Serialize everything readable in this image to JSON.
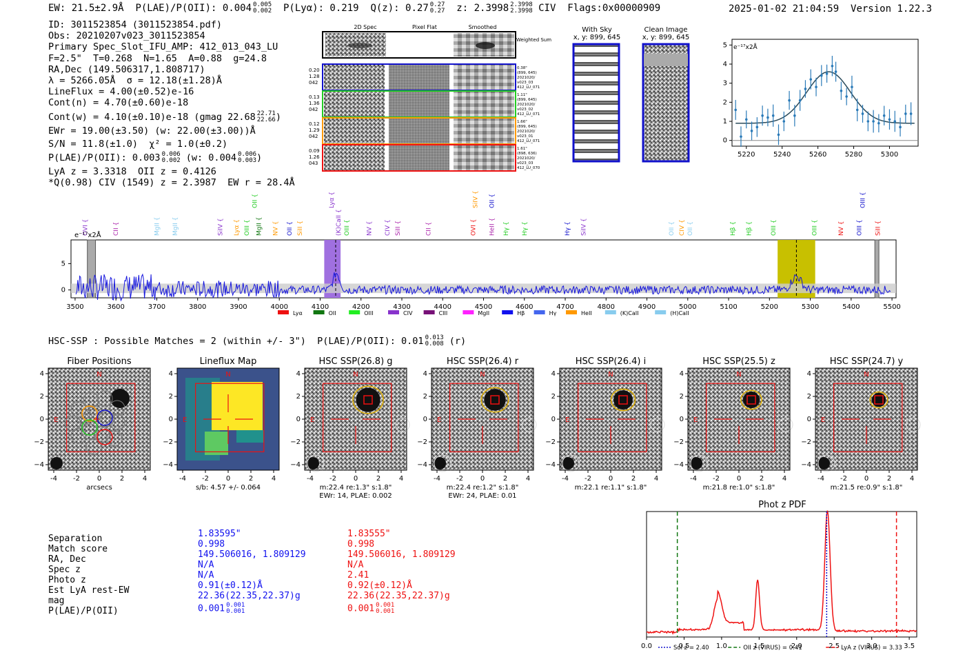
{
  "header": {
    "ew": "EW: 21.5±2.9Å",
    "plae_label": "P(LAE)/P(OII):",
    "plae_val": "0.004",
    "plae_hi": "0.005",
    "plae_lo": "0.002",
    "plya": "P(Lyα): 0.219",
    "qz_label": "Q(z):",
    "qz_val": "0.27",
    "qz_hi": "0.27",
    "qz_lo": "0.27",
    "z_label": "z:",
    "z_val": "2.3998",
    "z_hi": "2.3998",
    "z_lo": "2.3998",
    "z_line": "CIV",
    "flags": "Flags:0x00000909",
    "datetime": "2025-01-02 21:04:59",
    "version": "Version 1.22.3"
  },
  "info": {
    "id": "ID: 3011523854 (3011523854.pdf)",
    "obs": "Obs: 20210207v023_3011523854",
    "primary": "Primary Spec_Slot_IFU_AMP: 412_013_043_LU",
    "params": "F=2.5\"  T=0.268  N=1.65  A=0.88  g=24.8",
    "radec": "RA,Dec (149.506317,1.808717)",
    "lambda": "λ = 5266.05Å  σ = 12.18(±1.28)Å",
    "lineflux": "LineFlux = 4.00(±0.52)e-16",
    "contn": "Cont(n) = 4.70(±0.60)e-18",
    "contw": "Cont(w) = 4.10(±0.10)e-18 (gmag 22.68",
    "contw_hi": "22.71",
    "contw_lo": "22.66",
    "contw_end": ")",
    "ewr": "EWr = 19.00(±3.50) (w: 22.00(±3.00))Å",
    "sn": "S/N = 11.8(±1.0)  χ² = 1.0(±0.2)",
    "plae": "P(LAE)/P(OII): 0.003",
    "plae_hi": "0.006",
    "plae_lo": "0.002",
    "plae_w": "(w: 0.004",
    "plae_w_hi": "0.006",
    "plae_w_lo": "0.003",
    "plae_w_end": ")",
    "lyaz": "LyA z = 3.3318  OII z = 0.4126",
    "qciv": "*Q(0.98) CIV (1549) z = 2.3987  EW r = 28.4Å"
  },
  "cutouts": {
    "col_2d": "2D Spec",
    "col_flat": "Pixel Flat",
    "col_smooth": "Smoothed",
    "weighted": "Weighted Sum",
    "rows": [
      {
        "l1": "0.20",
        "l2": "1.28",
        "l3": "042",
        "r1": "0.38\"",
        "r2": "(899, 645)",
        "r3": "2021020/",
        "r4": "v023_03",
        "r5": "412_LU_071",
        "color": "#1111cc"
      },
      {
        "l1": "0.13",
        "l2": "1.36",
        "l3": "042",
        "r1": "1.11\"",
        "r2": "(899, 645)",
        "r3": "2021020/",
        "r4": "v023_02",
        "r5": "412_LU_071",
        "color": "#22cc22"
      },
      {
        "l1": "0.12",
        "l2": "1.29",
        "l3": "042",
        "r1": "1.66\"",
        "r2": "(899, 645)",
        "r3": "2021020/",
        "r4": "v023_01",
        "r5": "412_LU_071",
        "color": "#ff9900"
      },
      {
        "l1": "0.09",
        "l2": "1.26",
        "l3": "043",
        "r1": "1.61\"",
        "r2": "(898, 636)",
        "r3": "2021020/",
        "r4": "v023_03",
        "r5": "412_LU_070",
        "color": "#ee1111"
      }
    ],
    "withsky_title": "With Sky",
    "withsky_xy": "x, y: 899, 645",
    "clean_title": "Clean Image",
    "clean_xy": "x, y: 899, 645"
  },
  "zoom_plot": {
    "unit_label": "e⁻¹⁷x2Å",
    "xticks": [
      "5220",
      "5240",
      "5260",
      "5280",
      "5300"
    ],
    "yticks": [
      "0",
      "1",
      "2",
      "3",
      "4",
      "5"
    ],
    "xlim": [
      5212,
      5316
    ],
    "ylim": [
      -0.3,
      5.3
    ],
    "gauss": {
      "amp": 2.7,
      "mu": 5266,
      "sigma": 12.2,
      "base": 0.9
    },
    "points": [
      [
        5214,
        1.6
      ],
      [
        5217,
        0.2
      ],
      [
        5220,
        1.1
      ],
      [
        5223,
        0.5
      ],
      [
        5226,
        0.7
      ],
      [
        5229,
        1.3
      ],
      [
        5232,
        1.2
      ],
      [
        5235,
        1.3
      ],
      [
        5238,
        0.3
      ],
      [
        5241,
        1.0
      ],
      [
        5244,
        2.1
      ],
      [
        5247,
        1.3
      ],
      [
        5250,
        2.1
      ],
      [
        5253,
        2.7
      ],
      [
        5256,
        3.2
      ],
      [
        5259,
        2.8
      ],
      [
        5262,
        3.4
      ],
      [
        5265,
        3.5
      ],
      [
        5268,
        3.9
      ],
      [
        5270,
        3.6
      ],
      [
        5273,
        2.6
      ],
      [
        5276,
        2.3
      ],
      [
        5279,
        2.8
      ],
      [
        5282,
        1.6
      ],
      [
        5285,
        1.4
      ],
      [
        5288,
        1.0
      ],
      [
        5291,
        1.0
      ],
      [
        5294,
        0.9
      ],
      [
        5297,
        1.3
      ],
      [
        5300,
        1.1
      ],
      [
        5303,
        1.0
      ],
      [
        5306,
        0.7
      ],
      [
        5309,
        1.4
      ],
      [
        5312,
        1.4
      ]
    ]
  },
  "spectrum": {
    "unit_label": "e⁻¹⁷x2Å",
    "xticks": [
      "3500",
      "3600",
      "3700",
      "3800",
      "3900",
      "4000",
      "4100",
      "4200",
      "4300",
      "4400",
      "4500",
      "4600",
      "4700",
      "4800",
      "4900",
      "5000",
      "5100",
      "5200",
      "5300",
      "5400",
      "5500"
    ],
    "yticks": [
      "0",
      "5"
    ],
    "xlim": [
      3490,
      5510
    ],
    "ylim": [
      -1.5,
      9.5
    ],
    "line_labels": [
      {
        "t": "OVI",
        "w": 3525,
        "c": "#8833cc",
        "lvl": 0
      },
      {
        "t": "CII",
        "w": 3600,
        "c": "#aa22aa",
        "lvl": 0
      },
      {
        "t": "MgII",
        "w": 3700,
        "c": "#88ccee",
        "lvl": 0
      },
      {
        "t": "MgII",
        "w": 3745,
        "c": "#88ccee",
        "lvl": 0
      },
      {
        "t": "SiIV",
        "w": 3855,
        "c": "#8833cc",
        "lvl": 0
      },
      {
        "t": "Lyα",
        "w": 3895,
        "c": "#ff9900",
        "lvl": 0
      },
      {
        "t": "OIII",
        "w": 3920,
        "c": "#22cc22",
        "lvl": 0
      },
      {
        "t": "MgII",
        "w": 3950,
        "c": "#117711",
        "lvl": 0
      },
      {
        "t": "OII",
        "w": 3940,
        "c": "#22cc22",
        "lvl": 1
      },
      {
        "t": "NV",
        "w": 3990,
        "c": "#ff9900",
        "lvl": 0
      },
      {
        "t": "OII",
        "w": 4025,
        "c": "#1111cc",
        "lvl": 0
      },
      {
        "t": "SiII",
        "w": 4050,
        "c": "#ff9900",
        "lvl": 0
      },
      {
        "t": "Lyα",
        "w": 4128,
        "c": "#8833cc",
        "lvl": 1
      },
      {
        "t": "(K)CaII",
        "w": 4145,
        "c": "#8833cc",
        "lvl": 0
      },
      {
        "t": "OIII",
        "w": 4165,
        "c": "#22cc22",
        "lvl": 0
      },
      {
        "t": "NV",
        "w": 4220,
        "c": "#8833cc",
        "lvl": 0
      },
      {
        "t": "CIV",
        "w": 4265,
        "c": "#8833cc",
        "lvl": 0
      },
      {
        "t": "SiII",
        "w": 4290,
        "c": "#aa22aa",
        "lvl": 0
      },
      {
        "t": "CII",
        "w": 4365,
        "c": "#aa22aa",
        "lvl": 0
      },
      {
        "t": "SiIV",
        "w": 4480,
        "c": "#ff9900",
        "lvl": 1
      },
      {
        "t": "OVI",
        "w": 4475,
        "c": "#ee1111",
        "lvl": 0
      },
      {
        "t": "OII",
        "w": 4520,
        "c": "#1111cc",
        "lvl": 1
      },
      {
        "t": "HeII",
        "w": 4520,
        "c": "#aa22aa",
        "lvl": 0
      },
      {
        "t": "Hγ",
        "w": 4555,
        "c": "#22cc22",
        "lvl": 0
      },
      {
        "t": "Hγ",
        "w": 4600,
        "c": "#22cc22",
        "lvl": 0
      },
      {
        "t": "Hγ",
        "w": 4705,
        "c": "#1111cc",
        "lvl": 0
      },
      {
        "t": "SiIV",
        "w": 4745,
        "c": "#8833cc",
        "lvl": 0
      },
      {
        "t": "OII",
        "w": 4960,
        "c": "#88ccee",
        "lvl": 0
      },
      {
        "t": "CIV",
        "w": 4985,
        "c": "#ff9900",
        "lvl": 0
      },
      {
        "t": "OII",
        "w": 5005,
        "c": "#88ccee",
        "lvl": 0
      },
      {
        "t": "Hβ",
        "w": 5110,
        "c": "#22cc22",
        "lvl": 0
      },
      {
        "t": "Hβ",
        "w": 5150,
        "c": "#22cc22",
        "lvl": 0
      },
      {
        "t": "OIII",
        "w": 5210,
        "c": "#22cc22",
        "lvl": 0
      },
      {
        "t": "OIII",
        "w": 5310,
        "c": "#22cc22",
        "lvl": 0
      },
      {
        "t": "NV",
        "w": 5375,
        "c": "#ee1111",
        "lvl": 0
      },
      {
        "t": "OIII",
        "w": 5420,
        "c": "#1111cc",
        "lvl": 0
      },
      {
        "t": "OIII",
        "w": 5428,
        "c": "#1111cc",
        "lvl": 1
      },
      {
        "t": "SiII",
        "w": 5465,
        "c": "#ee1111",
        "lvl": 0
      }
    ],
    "bands": [
      {
        "from": 4110,
        "to": 4150,
        "color": "#a070e0"
      },
      {
        "from": 5220,
        "to": 5312,
        "color": "#c8c000"
      }
    ],
    "gray_bands": [
      {
        "from": 3530,
        "to": 3550
      },
      {
        "from": 5458,
        "to": 5468
      }
    ],
    "dashed_lines": [
      4138,
      5266
    ],
    "legend": [
      {
        "t": "Lyα",
        "c": "#ee1111"
      },
      {
        "t": "OII",
        "c": "#117711"
      },
      {
        "t": "OIII",
        "c": "#22ee22"
      },
      {
        "t": "CIV",
        "c": "#8833cc"
      },
      {
        "t": "CIII",
        "c": "#771177"
      },
      {
        "t": "MgII",
        "c": "#ff22ff"
      },
      {
        "t": "Hβ",
        "c": "#1111ee"
      },
      {
        "t": "Hγ",
        "c": "#4466ee"
      },
      {
        "t": "HeII",
        "c": "#ff9900"
      },
      {
        "t": "(K)CaII",
        "c": "#88ccee"
      },
      {
        "t": "(H)CaII",
        "c": "#88ccee"
      }
    ]
  },
  "hsc": {
    "header": "HSC-SSP : Possible Matches = 2 (within +/- 3\")  P(LAE)/P(OII): 0.01",
    "header_hi": "0.013",
    "header_lo": "0.008",
    "header_end": "(r)",
    "panels": [
      {
        "title": "Fiber Positions",
        "cap1": "arcsecs",
        "cap2": ""
      },
      {
        "title": "Lineflux Map",
        "cap1": "s/b: 4.57 +/- 0.064",
        "cap2": ""
      },
      {
        "title": "HSC SSP(26.8) g",
        "cap1": "m:22.4  re:1.3\"  s:1.8\"",
        "cap2": "EWr: 14, PLAE: 0.002"
      },
      {
        "title": "HSC SSP(26.4) r",
        "cap1": "m:22.4  re:1.2\"  s:1.8\"",
        "cap2": "EWr: 24, PLAE: 0.01"
      },
      {
        "title": "HSC SSP(26.4) i",
        "cap1": "m:22.1  re:1.1\"  s:1.8\"",
        "cap2": ""
      },
      {
        "title": "HSC SSP(25.5) z",
        "cap1": "m:21.8  re:1.0\"  s:1.8\"",
        "cap2": ""
      },
      {
        "title": "HSC SSP(24.7) y",
        "cap1": "m:21.5  re:0.9\"  s:1.8\"",
        "cap2": ""
      }
    ],
    "axis_ticks": [
      "-4",
      "-2",
      "0",
      "2",
      "4"
    ],
    "n_label": "N",
    "e_label": "E"
  },
  "matches": {
    "labels": [
      "Separation",
      "Match score",
      "RA, Dec",
      "Spec z",
      "Photo z",
      "Est LyA rest-EW",
      "mag",
      "P(LAE)/P(OII)"
    ],
    "blue": [
      "1.83595\"",
      "0.998",
      "149.506016, 1.809129",
      "N/A",
      "N/A",
      "0.91(±0.12)Å",
      "22.36(22.35,22.37)g",
      "0.001"
    ],
    "blue_hi": "0.001",
    "blue_lo": "0.001",
    "red": [
      "1.83555\"",
      "0.998",
      "149.506016, 1.809129",
      "N/A",
      "2.41",
      "0.92(±0.12)Å",
      "22.36(22.35,22.37)g",
      "0.001"
    ],
    "red_hi": "0.001",
    "red_lo": "0.001"
  },
  "photz": {
    "title": "Phot z PDF",
    "xticks": [
      "0.0",
      "0.5",
      "1.0",
      "1.5",
      "2.0",
      "2.5",
      "3.0",
      "3.5"
    ],
    "xlim": [
      0,
      3.6
    ],
    "vlines": [
      {
        "x": 2.4,
        "color": "#1111cc",
        "style": "dotted",
        "label": "Sol z = 2.40"
      },
      {
        "x": 0.41,
        "color": "#117711",
        "style": "dashed",
        "label": "OII z (VIRUS) = 0.41"
      },
      {
        "x": 3.33,
        "color": "#ee1111",
        "style": "dashed",
        "label": "LyA z (VIRUS) = 3.33"
      }
    ],
    "peaks": [
      {
        "mu": 0.95,
        "amp": 0.26,
        "sig": 0.05
      },
      {
        "mu": 1.48,
        "amp": 0.42,
        "sig": 0.025
      },
      {
        "mu": 2.41,
        "amp": 1.0,
        "sig": 0.035
      }
    ],
    "baseline": 0.04
  }
}
